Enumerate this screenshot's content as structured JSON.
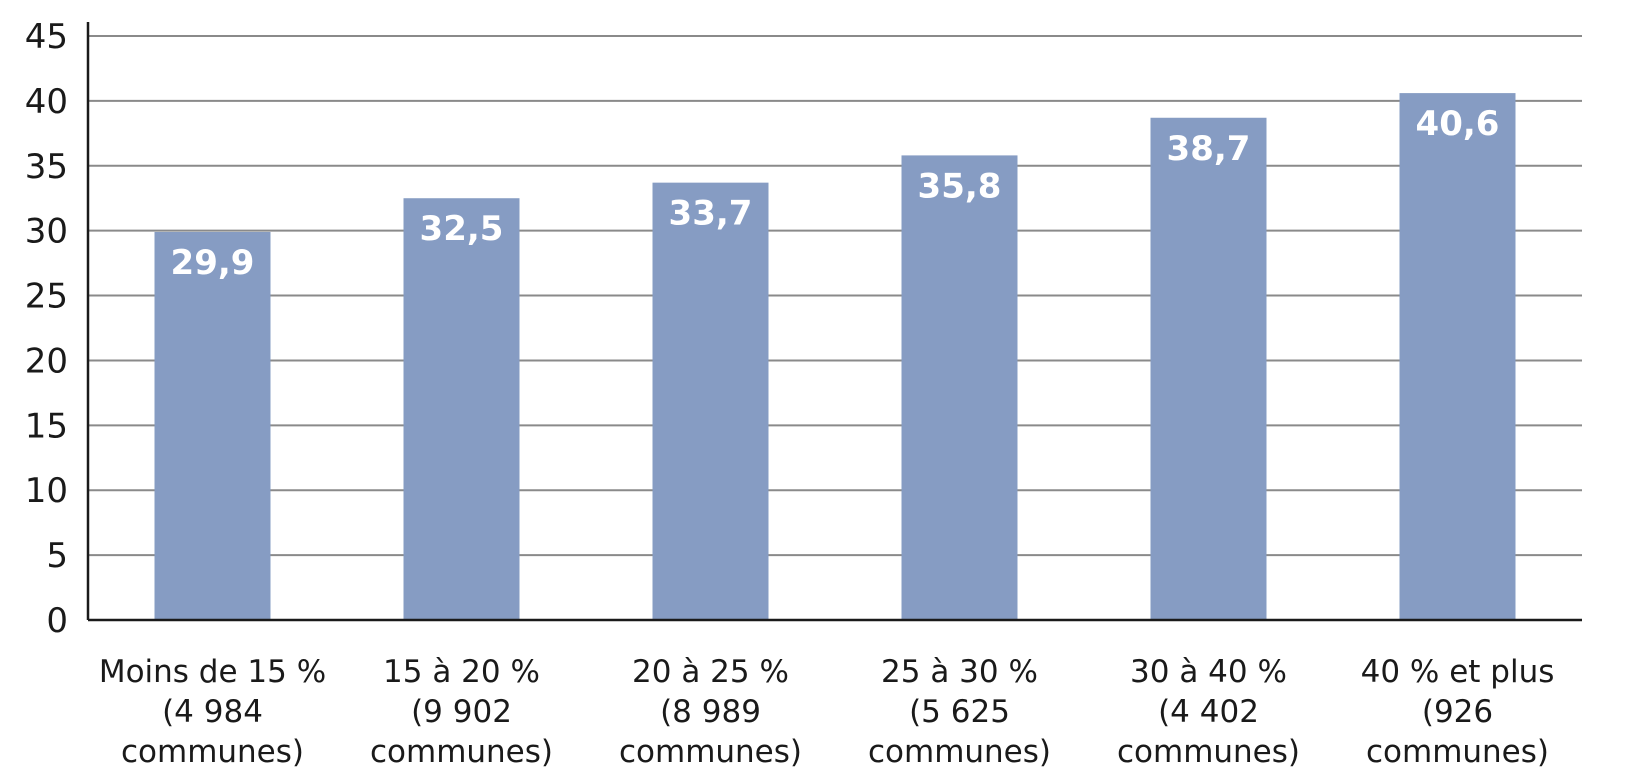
{
  "chart_data": {
    "type": "bar",
    "title": "",
    "xlabel": "",
    "ylabel": "",
    "ylim": [
      0,
      45
    ],
    "yticks": [
      0,
      5,
      10,
      15,
      20,
      25,
      30,
      35,
      40,
      45
    ],
    "grid": true,
    "legend": "none",
    "categories": [
      [
        "Moins de 15 %",
        "(4 984",
        "communes)"
      ],
      [
        "15 à 20 %",
        "(9 902",
        "communes)"
      ],
      [
        "20 à 25 %",
        "(8 989",
        "communes)"
      ],
      [
        "25 à 30 %",
        "(5 625",
        "communes)"
      ],
      [
        "30 à 40 %",
        "(4 402",
        "communes)"
      ],
      [
        "40 % et plus",
        "(926",
        "communes)"
      ]
    ],
    "values": [
      29.9,
      32.5,
      33.7,
      35.8,
      38.7,
      40.6
    ],
    "data_labels": [
      "29,9",
      "32,5",
      "33,7",
      "35,8",
      "38,7",
      "40,6"
    ],
    "colors": {
      "bar": "#869cc3",
      "grid": "#8a8a8a",
      "axis": "#1a1a1a",
      "data_label": "#ffffff",
      "text": "#1a1a1a"
    }
  }
}
